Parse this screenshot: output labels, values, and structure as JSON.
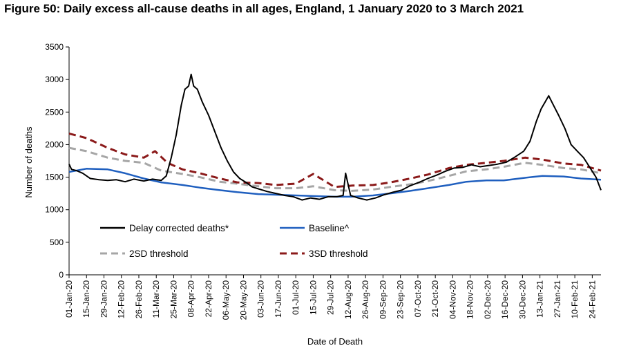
{
  "title": "Figure 50: Daily excess all-cause deaths in all ages, England, 1 January 2020 to 3 March 2021",
  "chart_data": {
    "type": "line",
    "xlabel": "Date of Death",
    "ylabel": "Number of deaths",
    "ylim": [
      0,
      3500
    ],
    "yticks": [
      0,
      500,
      1000,
      1500,
      2000,
      2500,
      3000,
      3500
    ],
    "xlim": [
      "2020-01-01",
      "2021-03-03"
    ],
    "x_tick_labels": [
      "01-Jan-20",
      "15-Jan-20",
      "29-Jan-20",
      "12-Feb-20",
      "26-Feb-20",
      "11-Mar-20",
      "25-Mar-20",
      "08-Apr-20",
      "22-Apr-20",
      "06-May-20",
      "20-May-20",
      "03-Jun-20",
      "17-Jun-20",
      "01-Jul-20",
      "15-Jul-20",
      "29-Jul-20",
      "12-Aug-20",
      "26-Aug-20",
      "09-Sep-20",
      "23-Sep-20",
      "07-Oct-20",
      "21-Oct-20",
      "04-Nov-20",
      "18-Nov-20",
      "02-Dec-20",
      "16-Dec-20",
      "30-Dec-20",
      "13-Jan-21",
      "27-Jan-21",
      "10-Feb-21",
      "24-Feb-21"
    ],
    "legend_position": "bottom-left",
    "grid": false,
    "series": [
      {
        "name": "Delay corrected deaths*",
        "color": "#000000",
        "style": "solid",
        "x": [
          "2020-01-01",
          "2020-01-03",
          "2020-01-07",
          "2020-01-12",
          "2020-01-18",
          "2020-01-25",
          "2020-02-01",
          "2020-02-08",
          "2020-02-15",
          "2020-02-22",
          "2020-03-01",
          "2020-03-08",
          "2020-03-15",
          "2020-03-19",
          "2020-03-23",
          "2020-03-27",
          "2020-03-31",
          "2020-04-03",
          "2020-04-06",
          "2020-04-08",
          "2020-04-10",
          "2020-04-13",
          "2020-04-17",
          "2020-04-22",
          "2020-04-27",
          "2020-05-02",
          "2020-05-07",
          "2020-05-12",
          "2020-05-17",
          "2020-05-22",
          "2020-05-27",
          "2020-06-01",
          "2020-06-08",
          "2020-06-15",
          "2020-06-22",
          "2020-06-29",
          "2020-07-06",
          "2020-07-13",
          "2020-07-20",
          "2020-07-27",
          "2020-08-03",
          "2020-08-08",
          "2020-08-10",
          "2020-08-14",
          "2020-08-20",
          "2020-08-27",
          "2020-09-03",
          "2020-09-10",
          "2020-09-17",
          "2020-09-24",
          "2020-10-01",
          "2020-10-08",
          "2020-10-15",
          "2020-10-22",
          "2020-10-29",
          "2020-11-05",
          "2020-11-12",
          "2020-11-19",
          "2020-11-26",
          "2020-12-03",
          "2020-12-10",
          "2020-12-17",
          "2020-12-24",
          "2020-12-31",
          "2021-01-05",
          "2021-01-10",
          "2021-01-14",
          "2021-01-17",
          "2021-01-20",
          "2021-01-24",
          "2021-01-28",
          "2021-02-02",
          "2021-02-07",
          "2021-02-12",
          "2021-02-17",
          "2021-02-22",
          "2021-02-27",
          "2021-03-03"
        ],
        "y": [
          1700,
          1620,
          1600,
          1560,
          1480,
          1460,
          1450,
          1460,
          1430,
          1470,
          1440,
          1470,
          1450,
          1520,
          1800,
          2150,
          2600,
          2850,
          2900,
          3080,
          2900,
          2850,
          2650,
          2450,
          2200,
          1950,
          1750,
          1580,
          1480,
          1420,
          1350,
          1320,
          1280,
          1250,
          1220,
          1200,
          1150,
          1180,
          1160,
          1200,
          1200,
          1220,
          1560,
          1220,
          1180,
          1150,
          1180,
          1230,
          1270,
          1300,
          1370,
          1420,
          1480,
          1530,
          1590,
          1640,
          1650,
          1690,
          1660,
          1680,
          1700,
          1730,
          1810,
          1900,
          2050,
          2350,
          2550,
          2650,
          2750,
          2600,
          2450,
          2250,
          2000,
          1900,
          1800,
          1650,
          1500,
          1300
        ]
      },
      {
        "name": "Baseline^",
        "color": "#1f5fbf",
        "style": "solid",
        "x": [
          "2020-01-01",
          "2020-01-15",
          "2020-02-01",
          "2020-02-15",
          "2020-03-01",
          "2020-03-15",
          "2020-04-01",
          "2020-04-15",
          "2020-05-01",
          "2020-05-15",
          "2020-06-01",
          "2020-06-15",
          "2020-07-01",
          "2020-07-15",
          "2020-08-01",
          "2020-08-15",
          "2020-09-01",
          "2020-09-15",
          "2020-10-01",
          "2020-10-15",
          "2020-11-01",
          "2020-11-15",
          "2020-12-01",
          "2020-12-15",
          "2021-01-01",
          "2021-01-15",
          "2021-02-01",
          "2021-02-15",
          "2021-03-03"
        ],
        "y": [
          1580,
          1630,
          1620,
          1560,
          1480,
          1420,
          1380,
          1340,
          1300,
          1270,
          1240,
          1230,
          1220,
          1210,
          1200,
          1200,
          1220,
          1250,
          1290,
          1330,
          1380,
          1430,
          1450,
          1450,
          1490,
          1520,
          1510,
          1480,
          1460
        ]
      },
      {
        "name": "2SD threshold",
        "color": "#a6a6a6",
        "style": "dashed",
        "x": [
          "2020-01-01",
          "2020-01-15",
          "2020-02-01",
          "2020-02-15",
          "2020-03-01",
          "2020-03-15",
          "2020-04-01",
          "2020-04-15",
          "2020-05-01",
          "2020-05-15",
          "2020-06-01",
          "2020-06-15",
          "2020-07-01",
          "2020-07-15",
          "2020-08-01",
          "2020-08-15",
          "2020-09-01",
          "2020-09-15",
          "2020-10-01",
          "2020-10-15",
          "2020-11-01",
          "2020-11-15",
          "2020-12-01",
          "2020-12-15",
          "2021-01-01",
          "2021-01-15",
          "2021-02-01",
          "2021-02-15",
          "2021-03-03"
        ],
        "y": [
          1950,
          1900,
          1800,
          1750,
          1720,
          1600,
          1550,
          1500,
          1430,
          1400,
          1360,
          1330,
          1330,
          1360,
          1300,
          1290,
          1310,
          1350,
          1390,
          1440,
          1520,
          1590,
          1620,
          1660,
          1720,
          1690,
          1640,
          1620,
          1560
        ]
      },
      {
        "name": "3SD threshold",
        "color": "#8b1a1a",
        "style": "dashed",
        "x": [
          "2020-01-01",
          "2020-01-15",
          "2020-02-01",
          "2020-02-15",
          "2020-03-01",
          "2020-03-10",
          "2020-03-20",
          "2020-04-01",
          "2020-04-15",
          "2020-05-01",
          "2020-05-15",
          "2020-06-01",
          "2020-06-15",
          "2020-07-01",
          "2020-07-15",
          "2020-08-01",
          "2020-08-15",
          "2020-09-01",
          "2020-09-15",
          "2020-10-01",
          "2020-10-15",
          "2020-11-01",
          "2020-11-15",
          "2020-12-01",
          "2020-12-15",
          "2021-01-01",
          "2021-01-15",
          "2021-02-01",
          "2021-02-15",
          "2021-03-03"
        ],
        "y": [
          2170,
          2100,
          1950,
          1850,
          1800,
          1900,
          1720,
          1620,
          1560,
          1480,
          1420,
          1410,
          1380,
          1400,
          1550,
          1350,
          1370,
          1380,
          1420,
          1480,
          1540,
          1640,
          1690,
          1720,
          1750,
          1800,
          1770,
          1710,
          1690,
          1600
        ]
      }
    ]
  }
}
